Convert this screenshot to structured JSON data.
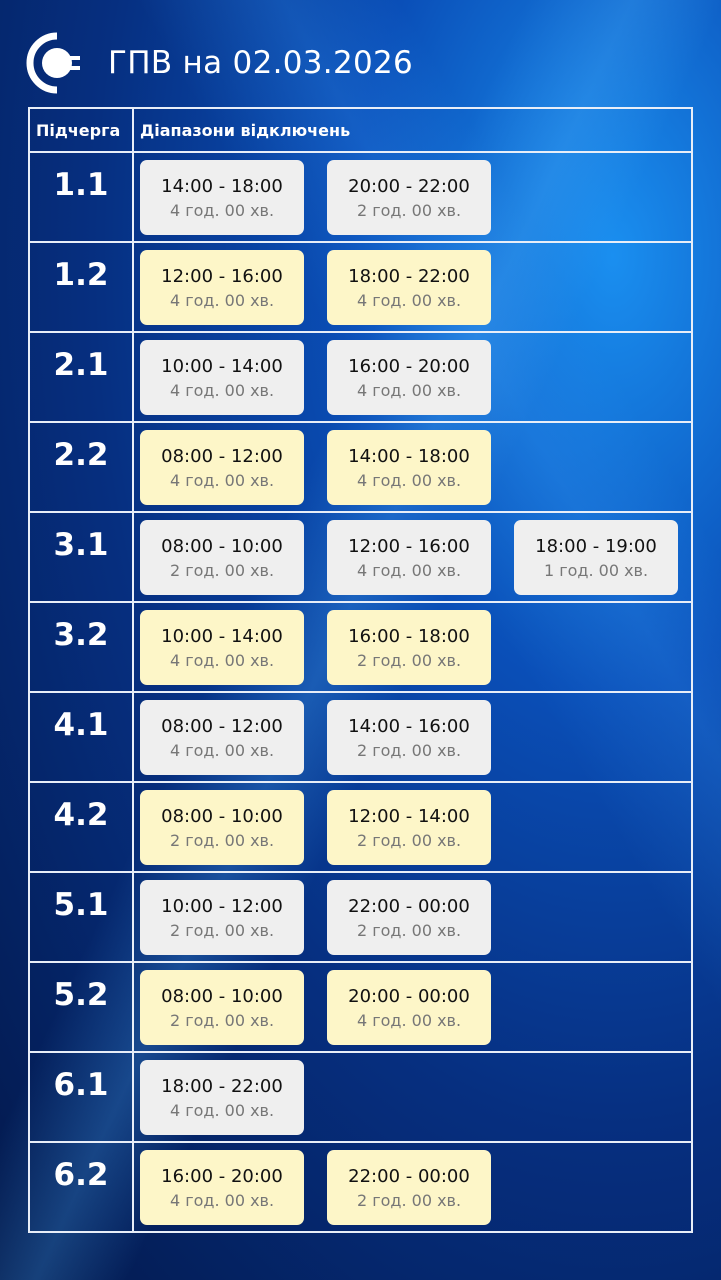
{
  "title": "ГПВ на 02.03.2026",
  "headers": {
    "queue": "Підчерга",
    "ranges": "Діапазони відключень"
  },
  "colors": {
    "grey_chip": "#efefef",
    "yellow_chip": "#fdf6c8"
  },
  "rows": [
    {
      "queue": "1.1",
      "style": "g",
      "ranges": [
        {
          "time": "14:00 - 18:00",
          "dur": "4 год. 00 хв."
        },
        {
          "time": "20:00 - 22:00",
          "dur": "2 год. 00 хв."
        }
      ]
    },
    {
      "queue": "1.2",
      "style": "y",
      "ranges": [
        {
          "time": "12:00 - 16:00",
          "dur": "4 год. 00 хв."
        },
        {
          "time": "18:00 - 22:00",
          "dur": "4 год. 00 хв."
        }
      ]
    },
    {
      "queue": "2.1",
      "style": "g",
      "ranges": [
        {
          "time": "10:00 - 14:00",
          "dur": "4 год. 00 хв."
        },
        {
          "time": "16:00 - 20:00",
          "dur": "4 год. 00 хв."
        }
      ]
    },
    {
      "queue": "2.2",
      "style": "y",
      "ranges": [
        {
          "time": "08:00 - 12:00",
          "dur": "4 год. 00 хв."
        },
        {
          "time": "14:00 - 18:00",
          "dur": "4 год. 00 хв."
        }
      ]
    },
    {
      "queue": "3.1",
      "style": "g",
      "ranges": [
        {
          "time": "08:00 - 10:00",
          "dur": "2 год. 00 хв."
        },
        {
          "time": "12:00 - 16:00",
          "dur": "4 год. 00 хв."
        },
        {
          "time": "18:00 - 19:00",
          "dur": "1 год. 00 хв."
        }
      ]
    },
    {
      "queue": "3.2",
      "style": "y",
      "ranges": [
        {
          "time": "10:00 - 14:00",
          "dur": "4 год. 00 хв."
        },
        {
          "time": "16:00 - 18:00",
          "dur": "2 год. 00 хв."
        }
      ]
    },
    {
      "queue": "4.1",
      "style": "g",
      "ranges": [
        {
          "time": "08:00 - 12:00",
          "dur": "4 год. 00 хв."
        },
        {
          "time": "14:00 - 16:00",
          "dur": "2 год. 00 хв."
        }
      ]
    },
    {
      "queue": "4.2",
      "style": "y",
      "ranges": [
        {
          "time": "08:00 - 10:00",
          "dur": "2 год. 00 хв."
        },
        {
          "time": "12:00 - 14:00",
          "dur": "2 год. 00 хв."
        }
      ]
    },
    {
      "queue": "5.1",
      "style": "g",
      "ranges": [
        {
          "time": "10:00 - 12:00",
          "dur": "2 год. 00 хв."
        },
        {
          "time": "22:00 - 00:00",
          "dur": "2 год. 00 хв."
        }
      ]
    },
    {
      "queue": "5.2",
      "style": "y",
      "ranges": [
        {
          "time": "08:00 - 10:00",
          "dur": "2 год. 00 хв."
        },
        {
          "time": "20:00 - 00:00",
          "dur": "4 год. 00 хв."
        }
      ]
    },
    {
      "queue": "6.1",
      "style": "g",
      "ranges": [
        {
          "time": "18:00 - 22:00",
          "dur": "4 год. 00 хв."
        }
      ]
    },
    {
      "queue": "6.2",
      "style": "y",
      "ranges": [
        {
          "time": "16:00 - 20:00",
          "dur": "4 год. 00 хв."
        },
        {
          "time": "22:00 - 00:00",
          "dur": "2 год. 00 хв."
        }
      ]
    }
  ]
}
